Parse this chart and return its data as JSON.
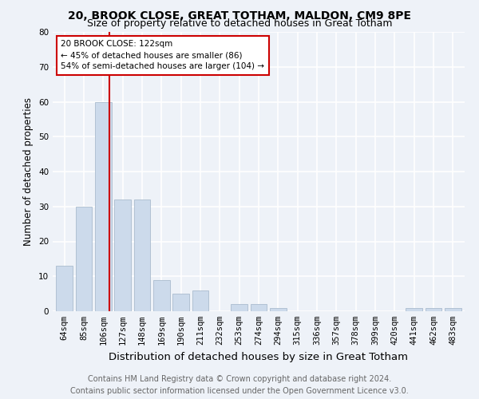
{
  "title1": "20, BROOK CLOSE, GREAT TOTHAM, MALDON, CM9 8PE",
  "title2": "Size of property relative to detached houses in Great Totham",
  "xlabel": "Distribution of detached houses by size in Great Totham",
  "ylabel": "Number of detached properties",
  "footer1": "Contains HM Land Registry data © Crown copyright and database right 2024.",
  "footer2": "Contains public sector information licensed under the Open Government Licence v3.0.",
  "categories": [
    "64sqm",
    "85sqm",
    "106sqm",
    "127sqm",
    "148sqm",
    "169sqm",
    "190sqm",
    "211sqm",
    "232sqm",
    "253sqm",
    "274sqm",
    "294sqm",
    "315sqm",
    "336sqm",
    "357sqm",
    "378sqm",
    "399sqm",
    "420sqm",
    "441sqm",
    "462sqm",
    "483sqm"
  ],
  "values": [
    13,
    30,
    60,
    32,
    32,
    9,
    5,
    6,
    0,
    2,
    2,
    1,
    0,
    0,
    0,
    0,
    0,
    0,
    1,
    1,
    1
  ],
  "bar_color": "#ccdaeb",
  "bar_edge_color": "#aabcce",
  "vline_x_index": 2,
  "vline_color": "#cc0000",
  "annotation_text": "20 BROOK CLOSE: 122sqm\n← 45% of detached houses are smaller (86)\n54% of semi-detached houses are larger (104) →",
  "annotation_box_color": "white",
  "annotation_box_edge": "#cc0000",
  "ylim": [
    0,
    80
  ],
  "yticks": [
    0,
    10,
    20,
    30,
    40,
    50,
    60,
    70,
    80
  ],
  "background_color": "#eef2f8",
  "plot_bg_color": "#eef2f8",
  "grid_color": "#ffffff",
  "title1_fontsize": 10,
  "title2_fontsize": 9,
  "xlabel_fontsize": 9.5,
  "ylabel_fontsize": 8.5,
  "tick_fontsize": 7.5,
  "annotation_fontsize": 7.5,
  "footer_fontsize": 7
}
